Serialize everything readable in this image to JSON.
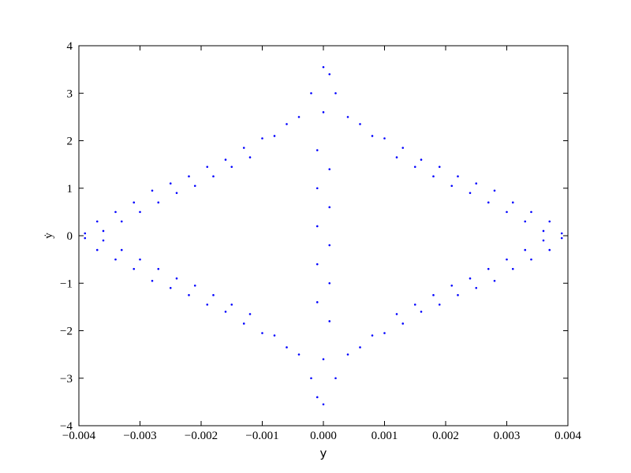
{
  "chart_data": {
    "type": "scatter",
    "xlabel": "y",
    "ylabel": "ẏ",
    "color": "#0000ff",
    "xlim": [
      -0.004,
      0.004
    ],
    "ylim": [
      -4,
      4
    ],
    "xticks": [
      {
        "value": -0.004,
        "label": "−0.004"
      },
      {
        "value": -0.003,
        "label": "−0.003"
      },
      {
        "value": -0.002,
        "label": "−0.002"
      },
      {
        "value": -0.001,
        "label": "−0.001"
      },
      {
        "value": 0,
        "label": "0.000"
      },
      {
        "value": 0.001,
        "label": "0.001"
      },
      {
        "value": 0.002,
        "label": "0.002"
      },
      {
        "value": 0.003,
        "label": "0.003"
      },
      {
        "value": 0.004,
        "label": "0.004"
      }
    ],
    "yticks": [
      {
        "value": -4,
        "label": "−4"
      },
      {
        "value": -3,
        "label": "−3"
      },
      {
        "value": -2,
        "label": "−2"
      },
      {
        "value": -1,
        "label": "−1"
      },
      0,
      1,
      2,
      3,
      4
    ],
    "x": [
      -0.0039,
      -0.0037,
      -0.0036,
      -0.0034,
      -0.0033,
      -0.0031,
      -0.003,
      -0.0028,
      -0.0027,
      -0.0025,
      -0.0024,
      -0.0022,
      -0.0021,
      -0.0019,
      -0.0018,
      -0.0016,
      -0.0015,
      -0.0013,
      -0.0012,
      -0.001,
      -0.0008,
      -0.0006,
      -0.0004,
      -0.0002,
      0.0039,
      0.0037,
      0.0036,
      0.0034,
      0.0033,
      0.0031,
      0.003,
      0.0028,
      0.0027,
      0.0025,
      0.0024,
      0.0022,
      0.0021,
      0.0019,
      0.0018,
      0.0016,
      0.0015,
      0.0013,
      0.0012,
      0.001,
      0.0008,
      0.0006,
      0.0004,
      0.0002,
      -0.0039,
      -0.0037,
      -0.0036,
      -0.0034,
      -0.0033,
      -0.0031,
      -0.003,
      -0.0028,
      -0.0027,
      -0.0025,
      -0.0024,
      -0.0022,
      -0.0021,
      -0.0019,
      -0.0018,
      -0.0016,
      -0.0015,
      -0.0013,
      -0.0012,
      -0.001,
      -0.0008,
      -0.0006,
      -0.0004,
      -0.0002,
      0.0039,
      0.0037,
      0.0036,
      0.0034,
      0.0033,
      0.0031,
      0.003,
      0.0028,
      0.0027,
      0.0025,
      0.0024,
      0.0022,
      0.0021,
      0.0019,
      0.0018,
      0.0016,
      0.0015,
      0.0013,
      0.0012,
      0.001,
      0.0008,
      0.0006,
      0.0004,
      0.0002,
      0.0001,
      -0.0001,
      0.0001,
      -0.0001,
      0.0001,
      -0.0001,
      0.0001,
      -0.0001,
      0.0001,
      -0.0001,
      0.0001,
      -0.0001,
      0,
      0,
      0,
      0
    ],
    "y": [
      0.05,
      0.3,
      0.1,
      0.5,
      0.3,
      0.7,
      0.5,
      0.95,
      0.7,
      1.1,
      0.9,
      1.25,
      1.05,
      1.45,
      1.25,
      1.6,
      1.45,
      1.85,
      1.65,
      2.05,
      2.1,
      2.35,
      2.5,
      3.0,
      0.05,
      0.3,
      0.1,
      0.5,
      0.3,
      0.7,
      0.5,
      0.95,
      0.7,
      1.1,
      0.9,
      1.25,
      1.05,
      1.45,
      1.25,
      1.6,
      1.45,
      1.85,
      1.65,
      2.05,
      2.1,
      2.35,
      2.5,
      3.0,
      -0.05,
      -0.3,
      -0.1,
      -0.5,
      -0.3,
      -0.7,
      -0.5,
      -0.95,
      -0.7,
      -1.1,
      -0.9,
      -1.25,
      -1.05,
      -1.45,
      -1.25,
      -1.6,
      -1.45,
      -1.85,
      -1.65,
      -2.05,
      -2.1,
      -2.35,
      -2.5,
      -3.0,
      -0.05,
      -0.3,
      -0.1,
      -0.5,
      -0.3,
      -0.7,
      -0.5,
      -0.95,
      -0.7,
      -1.1,
      -0.9,
      -1.25,
      -1.05,
      -1.45,
      -1.25,
      -1.6,
      -1.45,
      -1.85,
      -1.65,
      -2.05,
      -2.1,
      -2.35,
      -2.5,
      -3.0,
      3.4,
      1.8,
      1.4,
      1.0,
      0.6,
      0.2,
      -0.2,
      -0.6,
      -1.0,
      -1.4,
      -1.8,
      -3.4,
      3.55,
      -3.55,
      2.6,
      -2.6
    ]
  }
}
